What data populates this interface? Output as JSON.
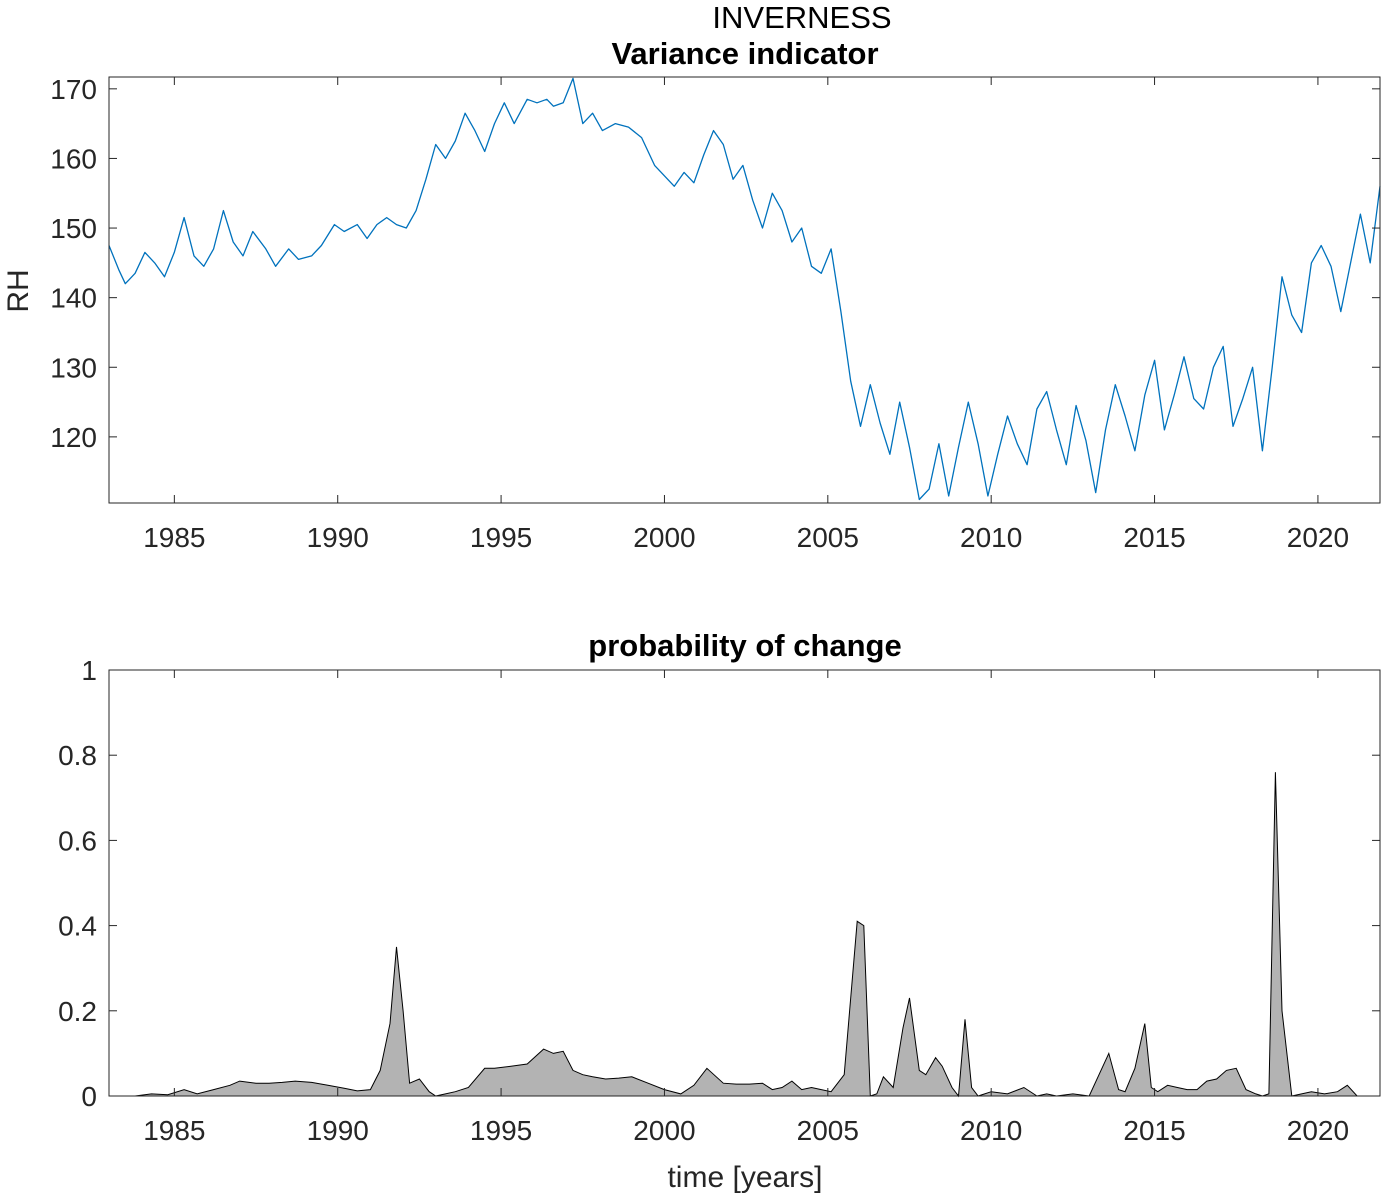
{
  "figure": {
    "supertitle": "INVERNESS"
  },
  "chart_data": [
    {
      "type": "line",
      "title": "Variance indicator",
      "xlabel": "",
      "ylabel": "RH",
      "xlim": [
        1983.0,
        2021.9
      ],
      "ylim": [
        110.5,
        171.7
      ],
      "xticks": [
        1985,
        1990,
        1995,
        2000,
        2005,
        2010,
        2015,
        2020
      ],
      "xtick_labels": [
        "1985",
        "1990",
        "1995",
        "2000",
        "2005",
        "2010",
        "2015",
        "2020"
      ],
      "yticks": [
        120,
        130,
        140,
        150,
        160,
        170
      ],
      "ytick_labels": [
        "120",
        "130",
        "140",
        "150",
        "160",
        "170"
      ],
      "box": true,
      "line_color": "#0072BD",
      "series": [
        {
          "x": [
            1983.0,
            1983.3,
            1983.5,
            1983.8,
            1984.1,
            1984.4,
            1984.7,
            1985.0,
            1985.3,
            1985.6,
            1985.9,
            1986.2,
            1986.5,
            1986.8,
            1987.1,
            1987.4,
            1987.8,
            1988.1,
            1988.5,
            1988.8,
            1989.2,
            1989.5,
            1989.9,
            1990.2,
            1990.6,
            1990.9,
            1991.2,
            1991.5,
            1991.8,
            1992.1,
            1992.4,
            1992.7,
            1993.0,
            1993.3,
            1993.6,
            1993.9,
            1994.2,
            1994.5,
            1994.8,
            1995.1,
            1995.4,
            1995.8,
            1996.1,
            1996.4,
            1996.6,
            1996.9,
            1997.2,
            1997.5,
            1997.8,
            1998.1,
            1998.5,
            1998.9,
            1999.3,
            1999.7,
            2000.0,
            2000.3,
            2000.6,
            2000.9,
            2001.2,
            2001.5,
            2001.8,
            2002.1,
            2002.4,
            2002.7,
            2003.0,
            2003.3,
            2003.6,
            2003.9,
            2004.2,
            2004.5,
            2004.8,
            2005.1,
            2005.4,
            2005.7,
            2006.0,
            2006.3,
            2006.6,
            2006.9,
            2007.2,
            2007.5,
            2007.8,
            2008.1,
            2008.4,
            2008.7,
            2009.0,
            2009.3,
            2009.6,
            2009.9,
            2010.2,
            2010.5,
            2010.8,
            2011.1,
            2011.4,
            2011.7,
            2012.0,
            2012.3,
            2012.6,
            2012.9,
            2013.2,
            2013.5,
            2013.8,
            2014.1,
            2014.4,
            2014.7,
            2015.0,
            2015.3,
            2015.6,
            2015.9,
            2016.2,
            2016.5,
            2016.8,
            2017.1,
            2017.4,
            2017.7,
            2018.0,
            2018.3,
            2018.6,
            2018.9,
            2019.2,
            2019.5,
            2019.8,
            2020.1,
            2020.4,
            2020.7,
            2021.0,
            2021.3,
            2021.6,
            2021.9
          ],
          "y": [
            147.5,
            144.0,
            142.0,
            143.5,
            146.5,
            145.0,
            143.0,
            146.5,
            151.5,
            146.0,
            144.5,
            147.0,
            152.5,
            148.0,
            146.0,
            149.5,
            147.0,
            144.5,
            147.0,
            145.5,
            146.0,
            147.5,
            150.5,
            149.5,
            150.5,
            148.5,
            150.5,
            151.5,
            150.5,
            150.0,
            152.5,
            157.0,
            162.0,
            160.0,
            162.5,
            166.5,
            164.0,
            161.0,
            165.0,
            168.0,
            165.0,
            168.5,
            168.0,
            168.5,
            167.5,
            168.0,
            171.5,
            165.0,
            166.5,
            164.0,
            165.0,
            164.5,
            163.0,
            159.0,
            157.5,
            156.0,
            158.0,
            156.5,
            160.5,
            164.0,
            162.0,
            157.0,
            159.0,
            154.0,
            150.0,
            155.0,
            152.5,
            148.0,
            150.0,
            144.5,
            143.5,
            147.0,
            138.0,
            128.0,
            121.5,
            127.5,
            122.0,
            117.5,
            125.0,
            118.5,
            111.0,
            112.5,
            119.0,
            111.5,
            118.5,
            125.0,
            119.0,
            111.5,
            117.5,
            123.0,
            119.0,
            116.0,
            124.0,
            126.5,
            121.0,
            116.0,
            124.5,
            119.5,
            112.0,
            121.0,
            127.5,
            123.0,
            118.0,
            126.0,
            131.0,
            121.0,
            126.0,
            131.5,
            125.5,
            124.0,
            130.0,
            133.0,
            121.5,
            125.5,
            130.0,
            118.0,
            130.0,
            143.0,
            137.5,
            135.0,
            145.0,
            147.5,
            144.5,
            138.0,
            145.0,
            152.0,
            145.0,
            156.0
          ]
        }
      ]
    },
    {
      "type": "area",
      "title": "probability of change",
      "xlabel": "time [years]",
      "ylabel": "",
      "xlim": [
        1983.0,
        2021.9
      ],
      "ylim": [
        0,
        1
      ],
      "xticks": [
        1985,
        1990,
        1995,
        2000,
        2005,
        2010,
        2015,
        2020
      ],
      "xtick_labels": [
        "1985",
        "1990",
        "1995",
        "2000",
        "2005",
        "2010",
        "2015",
        "2020"
      ],
      "yticks": [
        0,
        0.2,
        0.4,
        0.6,
        0.8,
        1
      ],
      "ytick_labels": [
        "0",
        "0.2",
        "0.4",
        "0.6",
        "0.8",
        "1"
      ],
      "box": true,
      "fill_color": "#b3b3b3",
      "edge_color": "#000000",
      "series": [
        {
          "x": [
            1983.0,
            1983.8,
            1984.3,
            1984.8,
            1985.3,
            1985.7,
            1986.2,
            1986.7,
            1987.0,
            1987.5,
            1987.9,
            1988.3,
            1988.7,
            1989.2,
            1989.7,
            1990.2,
            1990.6,
            1991.0,
            1991.3,
            1991.6,
            1991.8,
            1992.0,
            1992.2,
            1992.5,
            1992.8,
            1993.0,
            1993.3,
            1993.6,
            1994.0,
            1994.5,
            1994.8,
            1995.3,
            1995.8,
            1996.3,
            1996.6,
            1996.9,
            1997.2,
            1997.5,
            1997.8,
            1998.2,
            1998.6,
            1999.0,
            1999.5,
            2000.0,
            2000.5,
            2000.9,
            2001.3,
            2001.8,
            2002.2,
            2002.6,
            2003.0,
            2003.3,
            2003.6,
            2003.9,
            2004.2,
            2004.5,
            2004.8,
            2005.1,
            2005.5,
            2005.9,
            2006.1,
            2006.3,
            2006.5,
            2006.7,
            2007.0,
            2007.3,
            2007.5,
            2007.8,
            2008.0,
            2008.3,
            2008.5,
            2008.8,
            2009.0,
            2009.2,
            2009.4,
            2009.6,
            2009.8,
            2010.0,
            2010.5,
            2011.0,
            2011.4,
            2011.7,
            2012.0,
            2012.5,
            2013.0,
            2013.3,
            2013.6,
            2013.9,
            2014.1,
            2014.4,
            2014.7,
            2014.9,
            2015.1,
            2015.4,
            2015.7,
            2016.0,
            2016.3,
            2016.6,
            2016.9,
            2017.2,
            2017.5,
            2017.8,
            2018.1,
            2018.3,
            2018.5,
            2018.7,
            2018.9,
            2019.2,
            2019.5,
            2019.8,
            2020.2,
            2020.6,
            2020.9,
            2021.2,
            2021.9
          ],
          "y": [
            0.0,
            0.0,
            0.005,
            0.003,
            0.015,
            0.005,
            0.015,
            0.025,
            0.035,
            0.03,
            0.03,
            0.032,
            0.035,
            0.032,
            0.025,
            0.018,
            0.012,
            0.015,
            0.06,
            0.17,
            0.35,
            0.2,
            0.03,
            0.04,
            0.01,
            0.0,
            0.005,
            0.01,
            0.02,
            0.065,
            0.065,
            0.07,
            0.075,
            0.11,
            0.1,
            0.105,
            0.06,
            0.05,
            0.045,
            0.04,
            0.042,
            0.045,
            0.03,
            0.015,
            0.005,
            0.025,
            0.065,
            0.03,
            0.028,
            0.028,
            0.03,
            0.015,
            0.02,
            0.035,
            0.015,
            0.02,
            0.015,
            0.01,
            0.05,
            0.41,
            0.4,
            0.0,
            0.005,
            0.045,
            0.02,
            0.16,
            0.23,
            0.06,
            0.05,
            0.09,
            0.07,
            0.02,
            0.0,
            0.18,
            0.02,
            0.0,
            0.005,
            0.01,
            0.005,
            0.02,
            0.0,
            0.005,
            0.0,
            0.005,
            0.0,
            0.05,
            0.1,
            0.015,
            0.01,
            0.065,
            0.17,
            0.02,
            0.01,
            0.025,
            0.02,
            0.015,
            0.015,
            0.035,
            0.04,
            0.06,
            0.065,
            0.015,
            0.005,
            0.0,
            0.005,
            0.76,
            0.2,
            0.0,
            0.005,
            0.01,
            0.005,
            0.01,
            0.025,
            0.0,
            0.0
          ]
        }
      ]
    }
  ]
}
